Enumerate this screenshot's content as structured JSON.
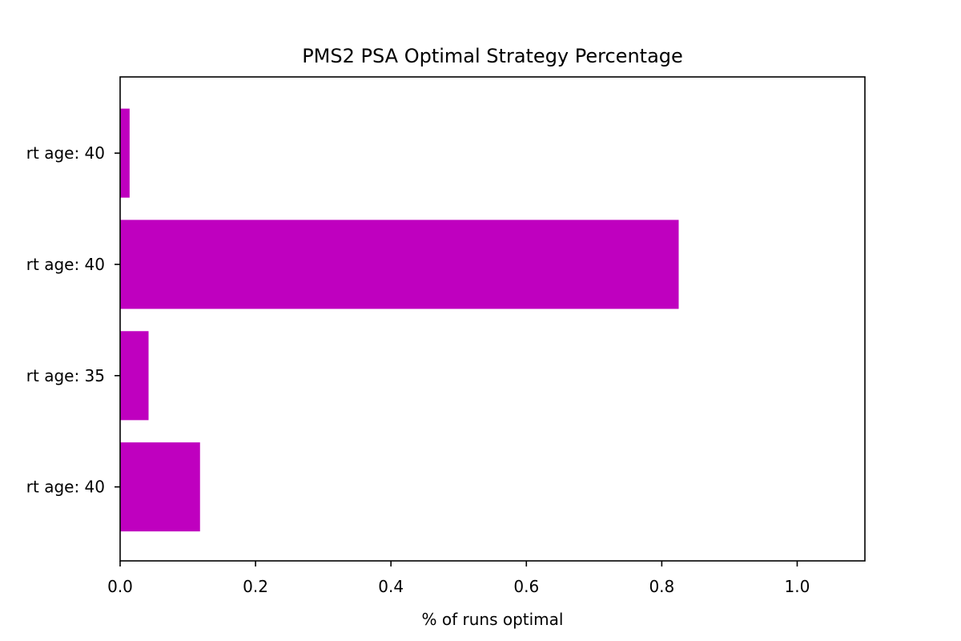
{
  "chart_data": {
    "type": "bar",
    "orientation": "horizontal",
    "title": "PMS2 PSA Optimal Strategy Percentage",
    "xlabel": "% of runs optimal",
    "ylabel": "",
    "xlim": [
      0,
      1.1
    ],
    "x_ticks": [
      "0.0",
      "0.2",
      "0.4",
      "0.6",
      "0.8",
      "1.0"
    ],
    "categories": [
      "rt age: 40",
      "rt age: 35",
      "rt age: 40",
      "rt age: 40"
    ],
    "values": [
      0.118,
      0.042,
      0.825,
      0.014
    ],
    "bar_color": "#bf00bf",
    "grid": false,
    "legend": "none"
  }
}
